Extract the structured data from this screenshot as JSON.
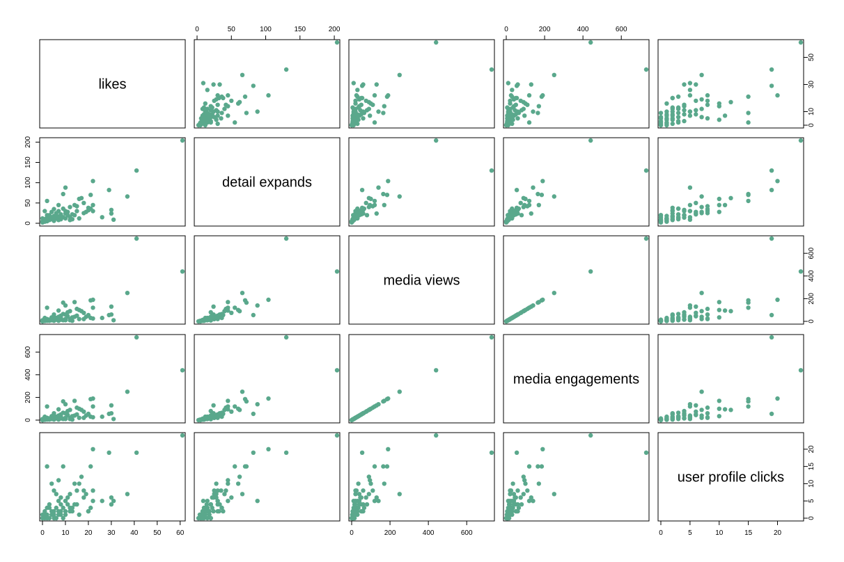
{
  "chart_data": {
    "type": "scatter",
    "layout": "pairs-matrix",
    "point_color": "#5aa88c",
    "grid": false,
    "variables": [
      "likes",
      "detail expands",
      "media views",
      "media engagements",
      "user profile clicks"
    ],
    "ranges": [
      [
        0,
        61
      ],
      [
        0,
        204
      ],
      [
        0,
        730
      ],
      [
        0,
        730
      ],
      [
        0,
        24
      ]
    ],
    "axes": [
      {
        "variable_index": 0,
        "side": "bottom",
        "column": 0,
        "ticks": [
          0,
          10,
          20,
          30,
          40,
          50,
          60
        ]
      },
      {
        "variable_index": 1,
        "side": "top",
        "column": 1,
        "ticks": [
          0,
          50,
          100,
          150,
          200
        ]
      },
      {
        "variable_index": 2,
        "side": "bottom",
        "column": 2,
        "ticks": [
          0,
          200,
          400,
          600
        ]
      },
      {
        "variable_index": 3,
        "side": "top",
        "column": 3,
        "ticks": [
          0,
          200,
          400,
          600
        ]
      },
      {
        "variable_index": 4,
        "side": "bottom",
        "column": 4,
        "ticks": [
          0,
          5,
          10,
          15,
          20
        ]
      },
      {
        "variable_index": 0,
        "side": "right",
        "row": 0,
        "ticks": [
          0,
          10,
          30,
          50
        ]
      },
      {
        "variable_index": 1,
        "side": "left",
        "row": 1,
        "ticks": [
          0,
          50,
          100,
          150,
          200
        ]
      },
      {
        "variable_index": 2,
        "side": "right",
        "row": 2,
        "ticks": [
          0,
          200,
          400,
          600
        ]
      },
      {
        "variable_index": 3,
        "side": "left",
        "row": 3,
        "ticks": [
          0,
          200,
          400,
          600
        ]
      },
      {
        "variable_index": 4,
        "side": "right",
        "row": 4,
        "ticks": [
          0,
          5,
          10,
          15,
          20
        ]
      }
    ],
    "observations": [
      [
        61,
        204,
        440,
        440,
        24
      ],
      [
        41,
        130,
        730,
        730,
        19
      ],
      [
        37,
        66,
        250,
        250,
        7
      ],
      [
        30,
        24,
        130,
        130,
        6
      ],
      [
        31,
        9,
        10,
        10,
        5
      ],
      [
        29,
        82,
        55,
        55,
        19
      ],
      [
        22,
        104,
        190,
        190,
        20
      ],
      [
        21,
        70,
        185,
        185,
        15
      ],
      [
        22,
        45,
        120,
        120,
        5
      ],
      [
        21,
        36,
        30,
        30,
        3
      ],
      [
        20,
        32,
        50,
        50,
        2
      ],
      [
        18,
        25,
        20,
        20,
        8
      ],
      [
        17,
        62,
        90,
        90,
        12
      ],
      [
        16,
        60,
        100,
        100,
        10
      ],
      [
        15,
        42,
        110,
        110,
        8
      ],
      [
        14,
        45,
        170,
        170,
        10
      ],
      [
        14,
        20,
        40,
        40,
        4
      ],
      [
        13,
        10,
        5,
        5,
        2
      ],
      [
        12,
        40,
        90,
        90,
        7
      ],
      [
        12,
        15,
        20,
        20,
        3
      ],
      [
        11,
        20,
        80,
        80,
        4
      ],
      [
        10,
        88,
        140,
        140,
        5
      ],
      [
        10,
        12,
        10,
        10,
        1
      ],
      [
        9,
        72,
        165,
        165,
        15
      ],
      [
        9,
        15,
        10,
        10,
        0
      ],
      [
        8,
        22,
        50,
        50,
        6
      ],
      [
        8,
        10,
        15,
        15,
        2
      ],
      [
        7,
        45,
        95,
        95,
        11
      ],
      [
        7,
        30,
        40,
        40,
        5
      ],
      [
        7,
        8,
        5,
        5,
        1
      ],
      [
        6,
        25,
        20,
        20,
        7
      ],
      [
        6,
        12,
        30,
        30,
        3
      ],
      [
        5,
        35,
        60,
        60,
        8
      ],
      [
        5,
        18,
        25,
        25,
        2
      ],
      [
        5,
        6,
        5,
        5,
        0
      ],
      [
        4,
        28,
        35,
        35,
        10
      ],
      [
        4,
        10,
        10,
        10,
        1
      ],
      [
        3,
        20,
        15,
        15,
        4
      ],
      [
        3,
        8,
        5,
        5,
        0
      ],
      [
        2,
        55,
        120,
        120,
        15
      ],
      [
        2,
        15,
        20,
        20,
        3
      ],
      [
        2,
        5,
        5,
        5,
        1
      ],
      [
        1,
        10,
        5,
        5,
        0
      ],
      [
        1,
        30,
        30,
        30,
        2
      ],
      [
        0,
        5,
        0,
        0,
        0
      ],
      [
        0,
        12,
        10,
        10,
        1
      ],
      [
        0,
        2,
        0,
        0,
        0
      ],
      [
        12,
        8,
        10,
        10,
        2
      ],
      [
        18,
        50,
        75,
        75,
        6
      ],
      [
        22,
        30,
        25,
        25,
        8
      ],
      [
        20,
        38,
        55,
        55,
        2
      ],
      [
        26,
        15,
        30,
        30,
        5
      ],
      [
        30,
        33,
        60,
        60,
        4
      ],
      [
        11,
        28,
        45,
        45,
        6
      ],
      [
        9,
        36,
        65,
        65,
        3
      ],
      [
        8,
        18,
        30,
        30,
        1
      ],
      [
        6,
        20,
        15,
        15,
        0
      ],
      [
        4,
        15,
        10,
        10,
        2
      ],
      [
        13,
        22,
        35,
        35,
        3
      ],
      [
        15,
        30,
        50,
        50,
        4
      ],
      [
        16,
        12,
        20,
        20,
        1
      ],
      [
        19,
        28,
        40,
        40,
        7
      ],
      [
        3,
        10,
        10,
        10,
        3
      ],
      [
        10,
        24,
        60,
        60,
        2
      ],
      [
        10,
        30,
        20,
        20,
        5
      ],
      [
        7,
        16,
        25,
        25,
        2
      ],
      [
        5,
        8,
        12,
        12,
        1
      ],
      [
        2,
        20,
        8,
        8,
        0
      ],
      [
        1,
        4,
        3,
        3,
        1
      ],
      [
        8,
        14,
        18,
        18,
        4
      ]
    ]
  }
}
